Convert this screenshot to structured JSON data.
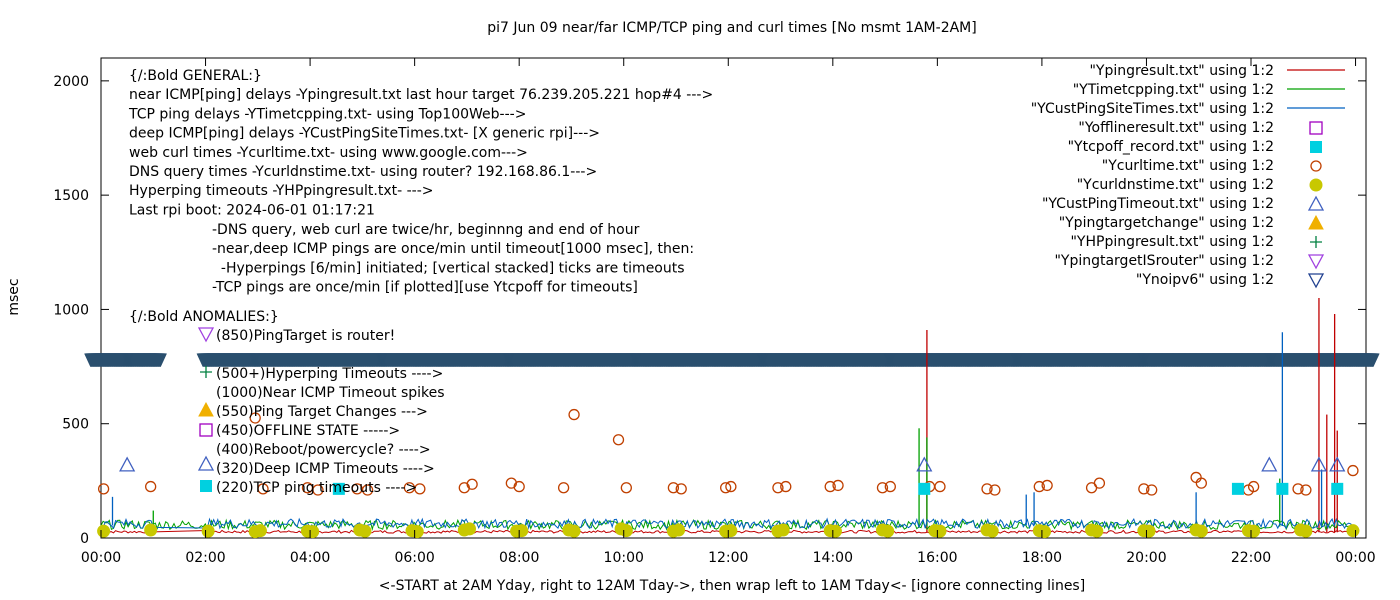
{
  "chart_data": {
    "type": "scatter",
    "title": "pi7 Jun 09  near/far ICMP/TCP ping and curl times [No msmt 1AM-2AM]",
    "xlabel": "<-START at 2AM Yday, right to 12AM Tday->, then wrap left to 1AM Tday<- [ignore connecting lines]",
    "ylabel": "msec",
    "ylim": [
      0,
      2100
    ],
    "xlim": [
      0,
      24.2
    ],
    "grid": false,
    "legend_position": "top-right",
    "y_ticks": [
      "0",
      "500",
      "1000",
      "1500",
      "2000"
    ],
    "y_tick_values": [
      0,
      500,
      1000,
      1500,
      2000
    ],
    "x_ticks": [
      "00:00",
      "02:00",
      "04:00",
      "06:00",
      "08:00",
      "10:00",
      "12:00",
      "14:00",
      "16:00",
      "18:00",
      "20:00",
      "22:00",
      "00:00"
    ],
    "x_tick_values": [
      0,
      2,
      4,
      6,
      8,
      10,
      12,
      14,
      16,
      18,
      20,
      22,
      24
    ],
    "legend": [
      {
        "label": "\"Ypingresult.txt\" using 1:2",
        "marker": "line",
        "color": "#c00000"
      },
      {
        "label": "\"YTimetcpping.txt\" using 1:2",
        "marker": "line",
        "color": "#00a000"
      },
      {
        "label": "\"YCustPingSiteTimes.txt\" using 1:2",
        "marker": "line",
        "color": "#0060c0"
      },
      {
        "label": "\"Yofflineresult.txt\" using 1:2",
        "marker": "open-square",
        "color": "#a000c0"
      },
      {
        "label": "\"Ytcpoff_record.txt\" using 1:2",
        "marker": "filled-square",
        "color": "#00d0e0"
      },
      {
        "label": "\"Ycurltime.txt\" using 1:2",
        "marker": "open-circle",
        "color": "#c04000"
      },
      {
        "label": "\"Ycurldnstime.txt\" using 1:2",
        "marker": "filled-circle",
        "color": "#c8c800"
      },
      {
        "label": "\"YCustPingTimeout.txt\" using 1:2",
        "marker": "open-triangle-up",
        "color": "#4060c0"
      },
      {
        "label": "\"Ypingtargetchange\" using 1:2",
        "marker": "filled-triangle-up",
        "color": "#f0b000"
      },
      {
        "label": "\"YHPpingresult.txt\" using 1:2",
        "marker": "plus",
        "color": "#008040"
      },
      {
        "label": "\"YpingtargetISrouter\" using 1:2",
        "marker": "open-triangle-down",
        "color": "#a040e0"
      },
      {
        "label": "\"Ynoipv6\" using 1:2",
        "marker": "open-triangle-down",
        "color": "#204090"
      }
    ],
    "annotations_general": [
      "{/:Bold GENERAL:}",
      "near ICMP[ping] delays -Ypingresult.txt last hour target 76.239.205.221 hop#4 --->",
      "TCP ping delays -YTimetcpping.txt- using Top100Web--->",
      "deep ICMP[ping] delays -YCustPingSiteTimes.txt- [X generic rpi]--->",
      "web curl times -Ycurltime.txt- using www.google.com--->",
      "DNS query times -Ycurldnstime.txt- using router? 192.168.86.1--->",
      "Hyperping timeouts -YHPpingresult.txt- --->",
      "Last rpi boot: 2024-06-01 01:17:21"
    ],
    "annotations_notes": [
      "-DNS query, web curl are twice/hr, beginnng and end of hour",
      "-near,deep ICMP pings are once/min until timeout[1000 msec], then:",
      "  -Hyperpings [6/min] initiated; [vertical stacked] ticks are timeouts",
      "-TCP pings are once/min [if plotted][use Ytcpoff for timeouts]"
    ],
    "annotations_anomalies": [
      "{/:Bold ANOMALIES:}",
      "(850)PingTarget is router!",
      "(500+)Hyperping Timeouts ---->",
      "(1000)Near ICMP Timeout spikes",
      "(550)Ping Target Changes --->",
      "(450)OFFLINE STATE ----->",
      "(400)Reboot/powercycle? ---->",
      "(320)Deep ICMP Timeouts ---->",
      "(220)TCP ping timeouts ---->"
    ],
    "noipv6_band_y": 780,
    "noipv6_gaps_x": [
      [
        1.15,
        1.95
      ]
    ],
    "series": [
      {
        "name": "\"Ycurltime.txt\" using 1:2",
        "marker": "open-circle",
        "x": [
          0.05,
          0.95,
          2.95,
          3.1,
          3.95,
          4.15,
          4.9,
          5.1,
          5.9,
          6.1,
          6.95,
          7.1,
          7.85,
          8.0,
          8.85,
          9.05,
          9.9,
          10.05,
          10.95,
          11.1,
          11.95,
          12.05,
          12.95,
          13.1,
          13.95,
          14.1,
          14.95,
          15.1,
          15.85,
          16.05,
          16.95,
          17.1,
          17.95,
          18.1,
          18.95,
          19.1,
          19.95,
          20.1,
          20.95,
          21.05,
          21.95,
          22.05,
          22.9,
          23.05,
          23.95
        ],
        "y": [
          215,
          225,
          525,
          215,
          220,
          210,
          215,
          210,
          220,
          215,
          220,
          235,
          240,
          225,
          220,
          540,
          430,
          220,
          220,
          215,
          220,
          225,
          220,
          225,
          225,
          230,
          220,
          225,
          225,
          225,
          215,
          210,
          225,
          230,
          220,
          240,
          215,
          210,
          265,
          240,
          210,
          225,
          215,
          210,
          295
        ]
      },
      {
        "name": "\"Ycurldnstime.txt\" using 1:2",
        "marker": "filled-circle",
        "x": [
          0.05,
          0.95,
          2.05,
          2.95,
          3.05,
          3.95,
          4.05,
          4.95,
          5.05,
          5.95,
          6.05,
          6.95,
          7.05,
          7.95,
          8.05,
          8.95,
          9.05,
          9.95,
          10.05,
          10.95,
          11.05,
          11.95,
          12.05,
          12.95,
          13.05,
          13.95,
          14.05,
          14.95,
          15.05,
          15.95,
          16.05,
          16.95,
          17.05,
          17.95,
          18.05,
          18.95,
          19.05,
          19.95,
          20.05,
          20.95,
          21.05,
          21.95,
          22.05,
          22.95,
          23.05,
          23.95
        ],
        "y": [
          30,
          35,
          30,
          28,
          32,
          30,
          28,
          35,
          30,
          32,
          28,
          35,
          40,
          30,
          32,
          35,
          30,
          40,
          32,
          30,
          35,
          30,
          32,
          30,
          35,
          32,
          30,
          35,
          30,
          32,
          30,
          35,
          30,
          32,
          28,
          35,
          30,
          32,
          30,
          35,
          30,
          32,
          30,
          35,
          30,
          32
        ]
      },
      {
        "name": "\"Ytcpoff_record.txt\" using 1:2",
        "marker": "filled-square",
        "x": [
          4.55,
          15.75,
          21.75,
          22.6,
          23.65
        ],
        "y": [
          215,
          215,
          215,
          215,
          215
        ]
      },
      {
        "name": "\"YCustPingTimeout.txt\" using 1:2",
        "marker": "open-triangle-up",
        "x": [
          0.5,
          15.75,
          22.35,
          23.3,
          23.65
        ],
        "y": [
          320,
          320,
          320,
          320,
          320
        ]
      },
      {
        "name": "\"Ypingresult.txt\" using 1:2",
        "marker": "line",
        "baseline": 25,
        "spikes_x": [
          15.8,
          23.3,
          23.45,
          23.6,
          23.65
        ],
        "spikes_y": [
          910,
          1050,
          540,
          980,
          470
        ]
      },
      {
        "name": "\"YTimetcpping.txt\" using 1:2",
        "marker": "line",
        "baseline": 50,
        "spikes_x": [
          1.0,
          15.65,
          15.8,
          22.55
        ],
        "spikes_y": [
          120,
          480,
          440,
          260
        ]
      },
      {
        "name": "\"YCustPingSiteTimes.txt\" using 1:2",
        "marker": "line",
        "baseline": 55,
        "spikes_x": [
          0.22,
          17.7,
          17.85,
          20.95,
          22.6,
          23.35
        ],
        "spikes_y": [
          180,
          190,
          200,
          200,
          900,
          300
        ]
      }
    ]
  }
}
